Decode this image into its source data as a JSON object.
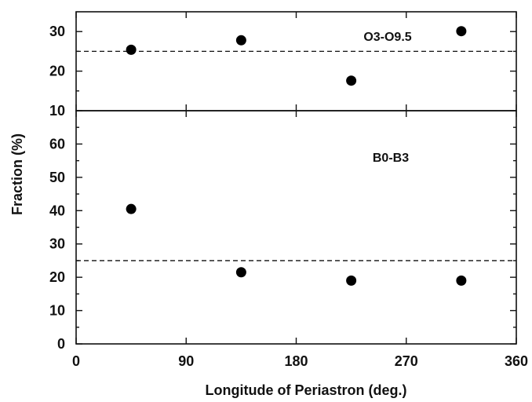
{
  "chart_data": [
    {
      "type": "scatter",
      "panel_label": "O3-O9.5",
      "ylim": [
        10,
        35
      ],
      "yticks": [
        10,
        20,
        30
      ],
      "ytick_labels": [
        "10",
        "20",
        "30"
      ],
      "x": [
        45,
        135,
        225,
        315
      ],
      "y": [
        25.4,
        27.8,
        17.6,
        30.1
      ],
      "reference_line": 25,
      "grid": false
    },
    {
      "type": "scatter",
      "panel_label": "B0-B3",
      "ylim": [
        0,
        70
      ],
      "yticks": [
        0,
        10,
        20,
        30,
        40,
        50,
        60
      ],
      "ytick_labels": [
        "0",
        "10",
        "20",
        "30",
        "40",
        "50",
        "60"
      ],
      "x": [
        45,
        135,
        225,
        315
      ],
      "y": [
        40.5,
        21.5,
        19.0,
        19.0
      ],
      "reference_line": 25,
      "grid": false
    }
  ],
  "shared_x": {
    "xlabel": "Longitude of Periastron (deg.)",
    "xlim": [
      0,
      360
    ],
    "xticks": [
      0,
      90,
      180,
      270,
      360
    ],
    "xtick_labels": [
      "0",
      "90",
      "180",
      "270",
      "360"
    ]
  },
  "ylabel": "Fraction (%)",
  "colors": {
    "points": "#000000",
    "axes": "#111111"
  }
}
